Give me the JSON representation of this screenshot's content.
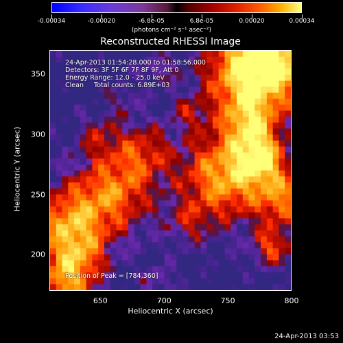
{
  "colorbar": {
    "ticks": [
      "-0.00034",
      "-0.00020",
      "-6.8e-05",
      "6.8e-05",
      "0.00020",
      "0.00034"
    ],
    "units": "(photons cm⁻² s⁻¹ asec⁻²)"
  },
  "chart_data": {
    "type": "heatmap",
    "title": "Reconstructed RHESSI Image",
    "xlabel": "Heliocentric X (arcsec)",
    "ylabel": "Heliocentric Y (arcsec)",
    "xlim": [
      610,
      800
    ],
    "ylim": [
      170,
      370
    ],
    "xticks": [
      "650",
      "700",
      "750",
      "800"
    ],
    "yticks": [
      "200",
      "250",
      "300",
      "350"
    ],
    "xtick_values": [
      650,
      700,
      750,
      800
    ],
    "ytick_values": [
      200,
      250,
      300,
      350
    ],
    "colorbar_range": [
      -0.00034,
      0.00034
    ],
    "annotations": {
      "time_range": "24-Apr-2013 01:54:28.000 to 01:58:56.000",
      "detectors": "Detectors: 3F 5F 6F 7F 8F 9F, Att 0",
      "energy": "Energy Range: 12.0 - 25.0 keV",
      "method_counts": "Clean     Total counts: 6.89E+03",
      "peak": "Position of Peak = [784,360]"
    },
    "peak_position": [
      784,
      360
    ]
  },
  "footer": "24-Apr-2013 03:53"
}
